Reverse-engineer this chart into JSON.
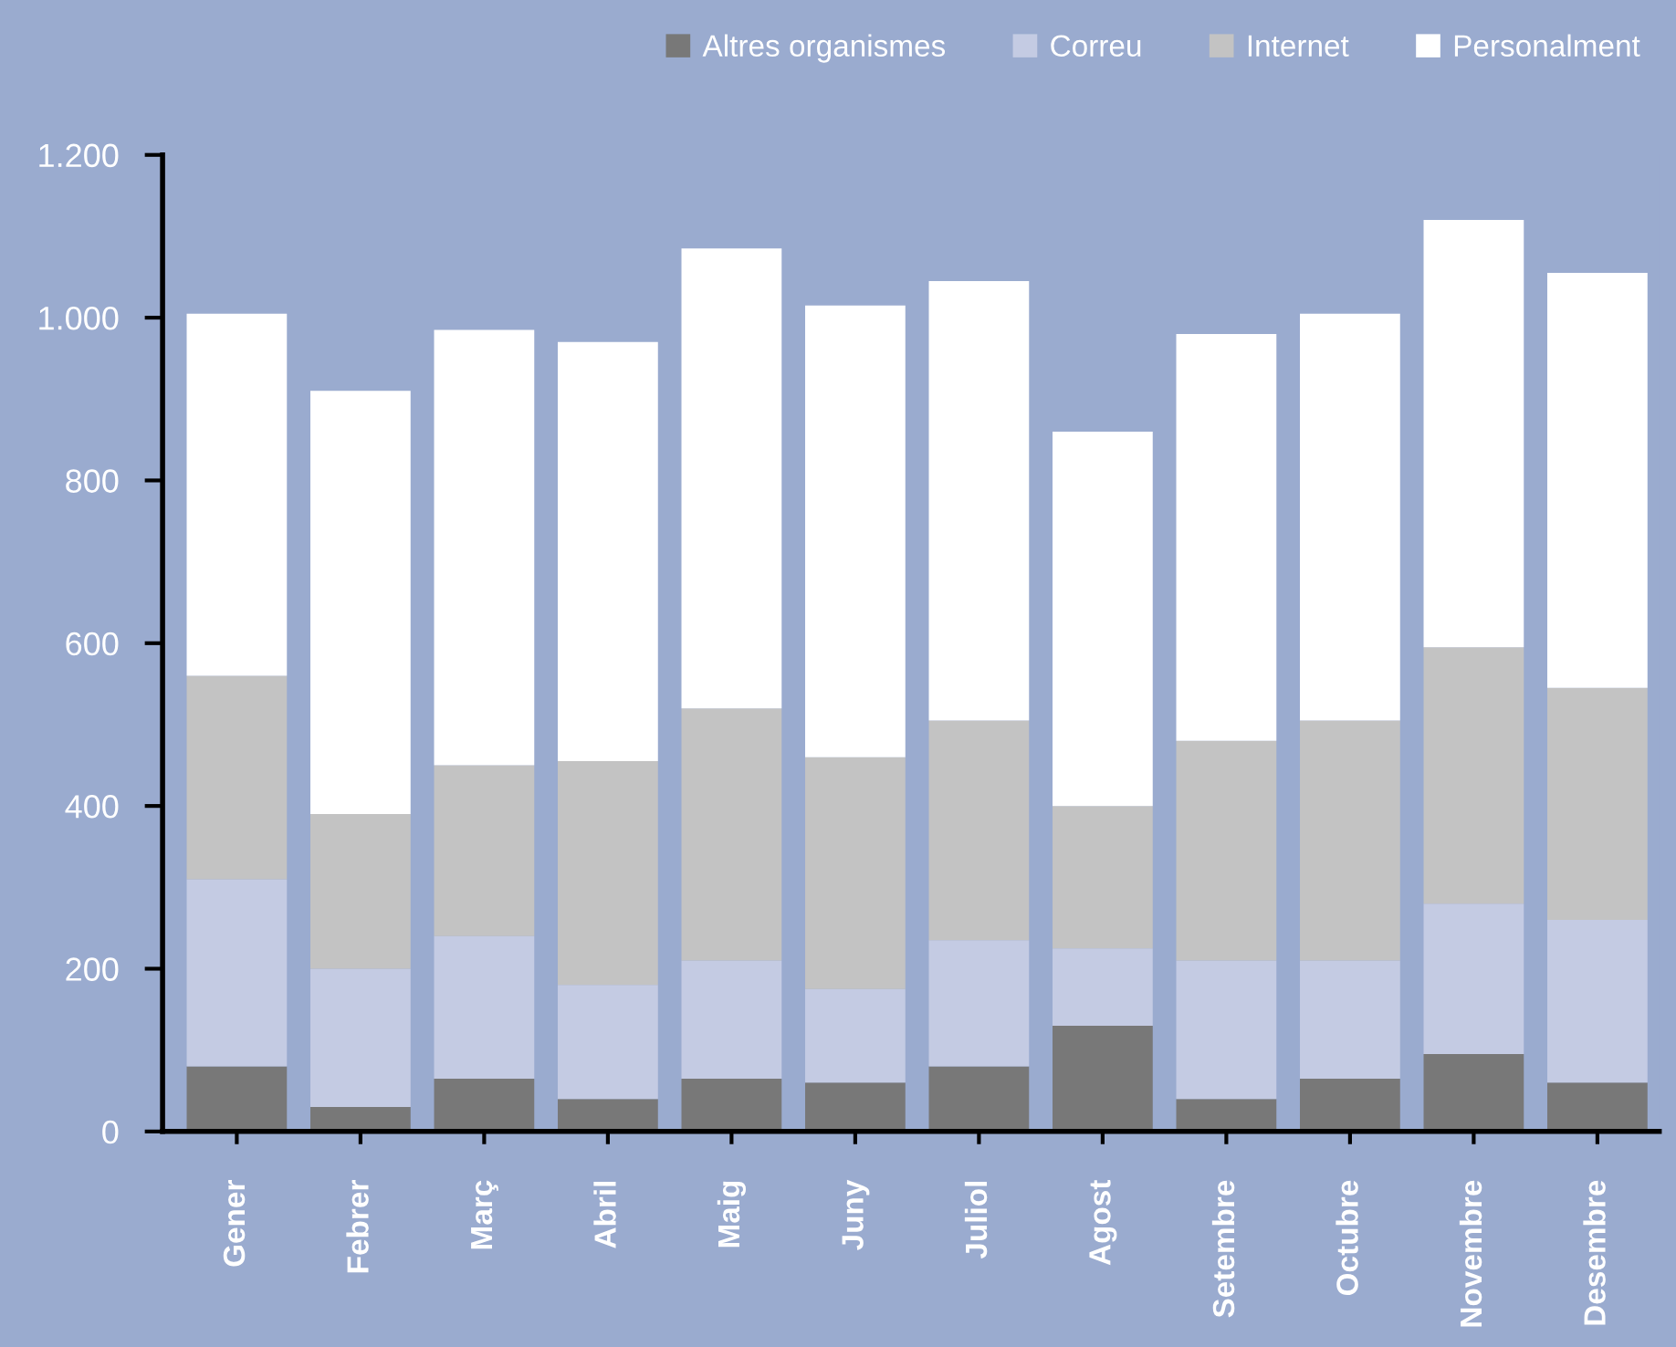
{
  "chart_data": {
    "type": "bar",
    "stacked": true,
    "categories": [
      "Gener",
      "Febrer",
      "Març",
      "Abril",
      "Maig",
      "Juny",
      "Juliol",
      "Agost",
      "Setembre",
      "Octubre",
      "Novembre",
      "Desembre"
    ],
    "series": [
      {
        "name": "Altres organismes",
        "color": "#787878",
        "values": [
          80,
          30,
          65,
          40,
          65,
          60,
          80,
          130,
          40,
          65,
          95,
          60
        ]
      },
      {
        "name": "Correu",
        "color": "#c4cbe3",
        "values": [
          230,
          170,
          175,
          140,
          145,
          115,
          155,
          95,
          170,
          145,
          185,
          200
        ]
      },
      {
        "name": "Internet",
        "color": "#c3c3c3",
        "values": [
          250,
          190,
          210,
          275,
          310,
          285,
          270,
          175,
          270,
          295,
          315,
          285
        ]
      },
      {
        "name": "Personalment",
        "color": "#ffffff",
        "values": [
          445,
          520,
          535,
          515,
          565,
          555,
          540,
          460,
          500,
          500,
          525,
          510
        ]
      }
    ],
    "ylim": [
      0,
      1200
    ],
    "yticks": [
      0,
      200,
      400,
      600,
      800,
      {
        "value": 1000,
        "label": "1.000"
      },
      {
        "value": 1200,
        "label": "1.200"
      }
    ],
    "legend": "top right"
  }
}
